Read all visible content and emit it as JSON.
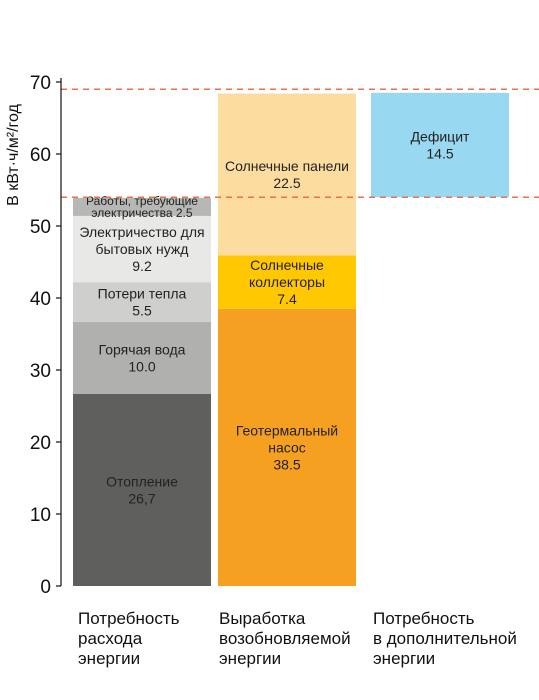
{
  "chart_data": {
    "type": "bar",
    "stacked": true,
    "ylabel": "В кВт·ч/м²/год",
    "ylim": [
      0,
      70
    ],
    "yticks": [
      0,
      10,
      20,
      30,
      40,
      50,
      60,
      70
    ],
    "grid": false,
    "reference_lines": [
      69.0,
      54.0
    ],
    "reference_line_color": "#e8704a",
    "categories": [
      {
        "lines": [
          "Потребность",
          "расхода",
          "энергии"
        ]
      },
      {
        "lines": [
          "Выработка",
          "возобновляемой",
          "энергии"
        ]
      },
      {
        "lines": [
          "Потребность",
          "в дополнительной",
          "энергии"
        ]
      }
    ],
    "bars": [
      {
        "segments": [
          {
            "lines": [
              "Отопление",
              "26,7"
            ],
            "value": 26.7,
            "color": "#5f5f5d"
          },
          {
            "lines": [
              "Горячая вода",
              "10.0"
            ],
            "value": 10.0,
            "color": "#b0b0ae"
          },
          {
            "lines": [
              "Потери тепла",
              "5.5"
            ],
            "value": 5.5,
            "color": "#cfcfcd"
          },
          {
            "lines": [
              "Электричество для",
              "бытовых нужд",
              "9.2"
            ],
            "value": 9.2,
            "color": "#e8e8e6"
          },
          {
            "lines": [
              "Работы, требующие",
              "электричества  2.5"
            ],
            "value": 2.5,
            "color": "#b7b7b5",
            "small": true
          }
        ]
      },
      {
        "segments": [
          {
            "lines": [
              "Геотермальный",
              "насос",
              "38.5"
            ],
            "value": 38.5,
            "color": "#f5a020"
          },
          {
            "lines": [
              "Солнечные",
              "коллекторы",
              "7.4"
            ],
            "value": 7.4,
            "color": "#ffc800"
          },
          {
            "lines": [
              "Солнечные панели",
              "22.5"
            ],
            "value": 22.5,
            "color": "#fddca0"
          }
        ]
      },
      {
        "base": 54.0,
        "segments": [
          {
            "lines": [
              "Дефицит",
              "14.5"
            ],
            "value": 14.5,
            "color": "#98d8f0"
          }
        ]
      }
    ]
  }
}
